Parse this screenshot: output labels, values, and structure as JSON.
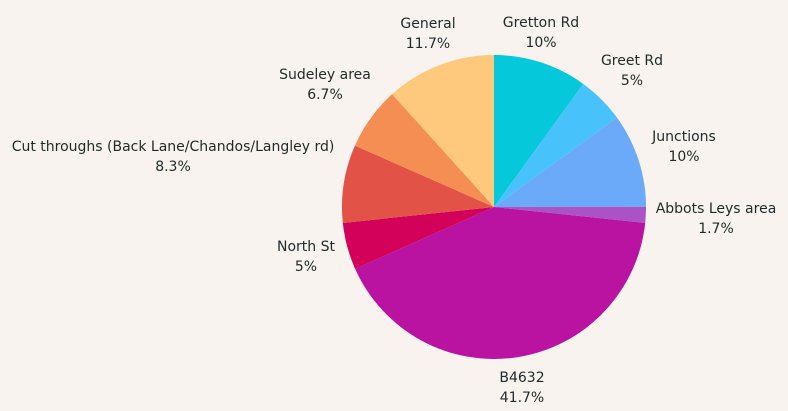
{
  "chart_data": {
    "type": "pie",
    "title": "",
    "slices": [
      {
        "label": "Gretton Rd",
        "value": 10,
        "display": "10%",
        "color": "#06c8db"
      },
      {
        "label": "Greet Rd",
        "value": 5,
        "display": "5%",
        "color": "#47c2fb"
      },
      {
        "label": "Junctions",
        "value": 10,
        "display": "10%",
        "color": "#6aaaf9"
      },
      {
        "label": "Abbots Leys area",
        "value": 1.7,
        "display": "1.7%",
        "color": "#a953c7"
      },
      {
        "label": "B4632",
        "value": 41.7,
        "display": "41.7%",
        "color": "#ba12a1"
      },
      {
        "label": "North St",
        "value": 5,
        "display": "5%",
        "color": "#d30159"
      },
      {
        "label": "Cut throughs (Back Lane/Chandos/Langley rd)",
        "value": 8.3,
        "display": "8.3%",
        "color": "#e25247"
      },
      {
        "label": "Sudeley area",
        "value": 6.7,
        "display": "6.7%",
        "color": "#f58e53"
      },
      {
        "label": "General",
        "value": 11.7,
        "display": "11.7%",
        "color": "#fec87d"
      }
    ]
  }
}
